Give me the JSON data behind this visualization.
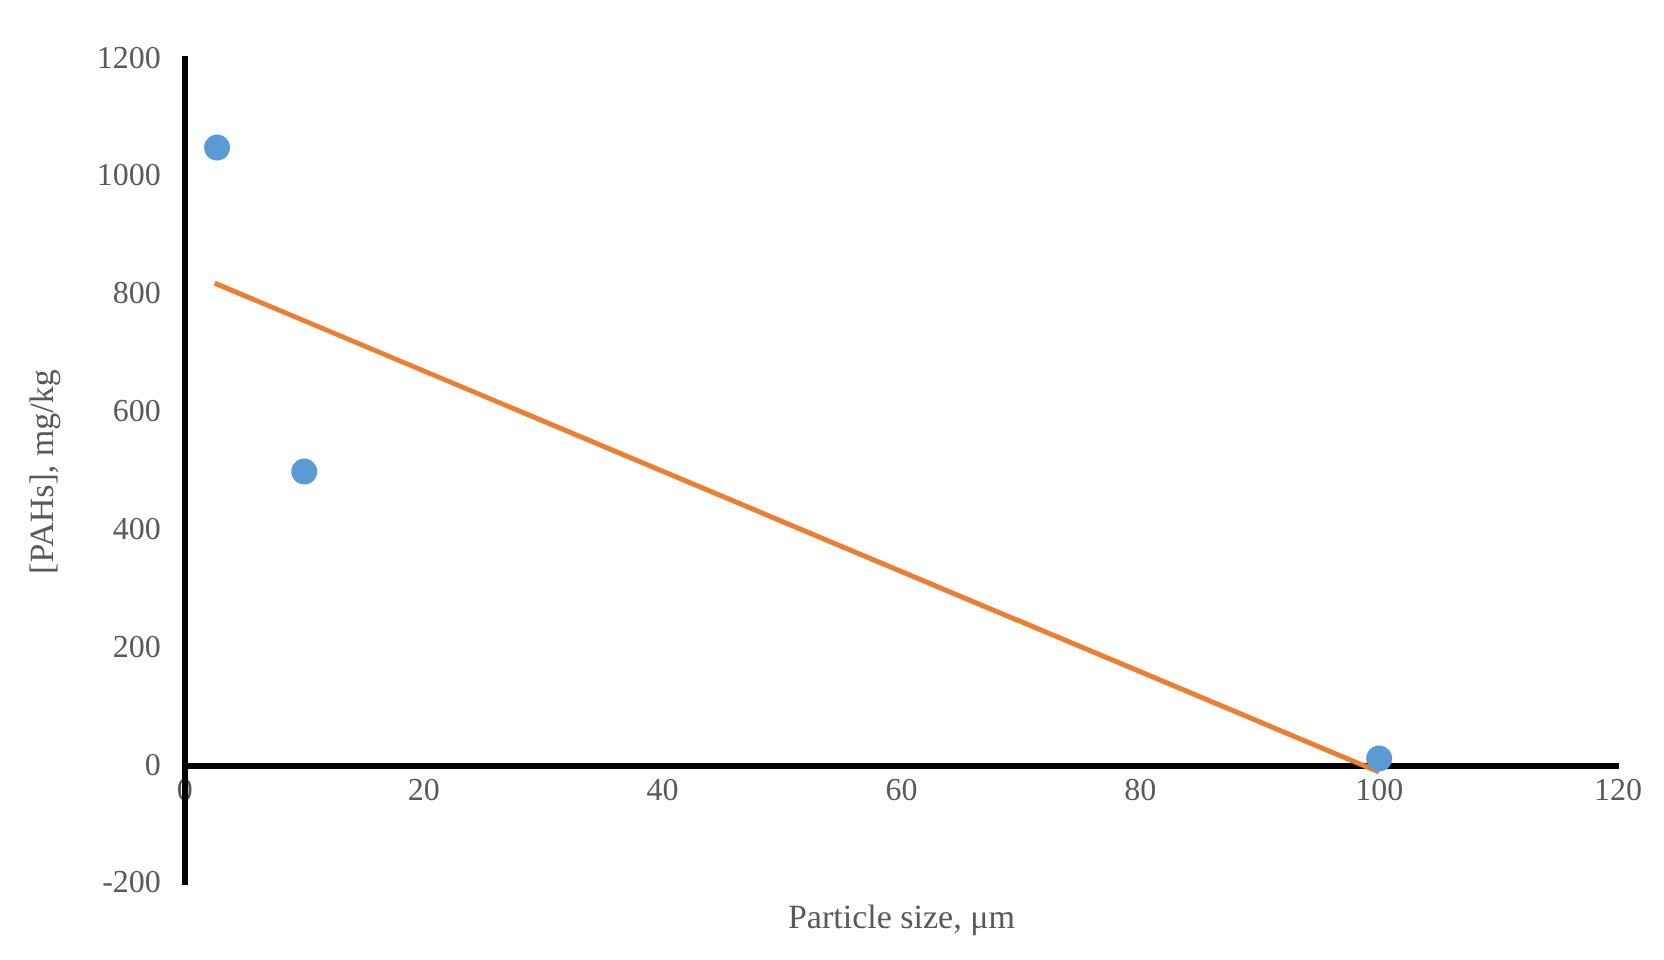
{
  "chart_data": {
    "type": "scatter",
    "xlabel": "Particle size, μm",
    "ylabel": "[PAHs], mg/kg",
    "xlim": [
      0,
      120
    ],
    "xticks": [
      0,
      20,
      40,
      60,
      80,
      100,
      120
    ],
    "ylim": [
      -200,
      1200
    ],
    "yticks": [
      -200,
      0,
      200,
      400,
      600,
      800,
      1000,
      1200
    ],
    "grid": false,
    "legend": false,
    "marker": "circle",
    "series": [
      {
        "type": "scatter",
        "color": "#5b9bd5",
        "x": [
          2.7,
          10,
          100
        ],
        "values": [
          1050,
          500,
          13
        ]
      },
      {
        "type": "line",
        "color": "#ed7d31",
        "marker": "none",
        "x": [
          2.5,
          100
        ],
        "values": [
          820,
          -10
        ]
      }
    ]
  }
}
